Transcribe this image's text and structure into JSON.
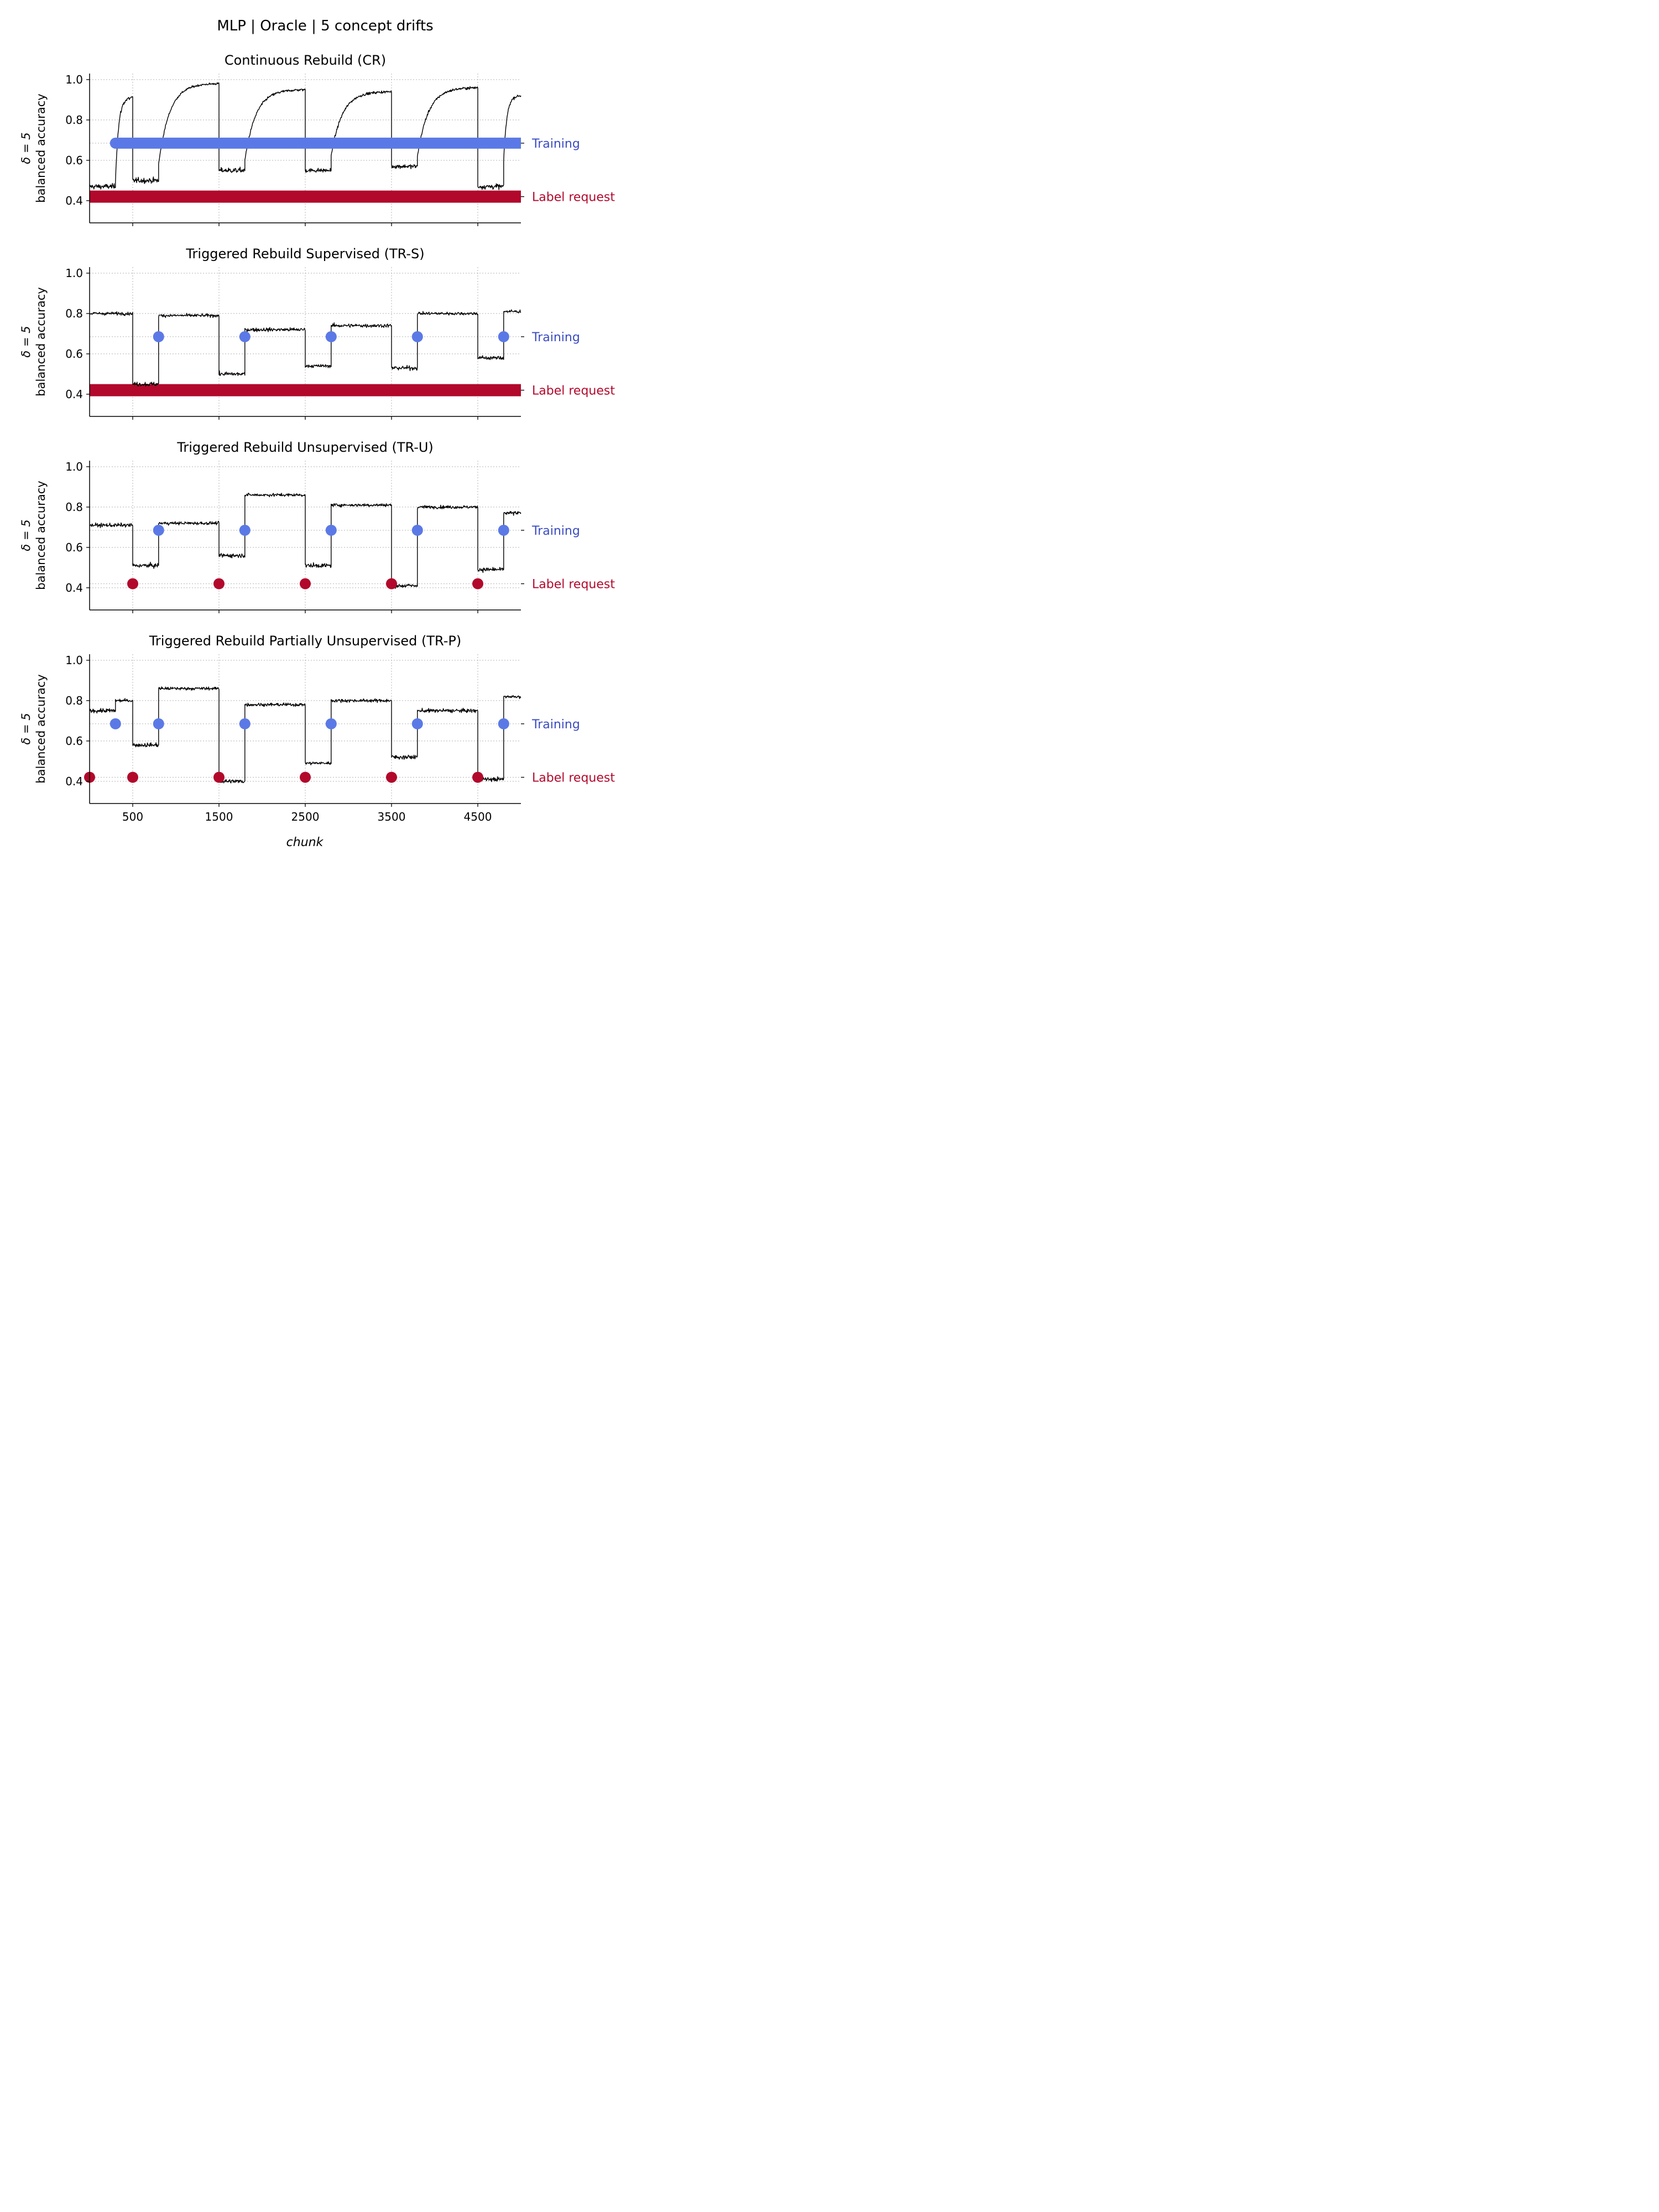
{
  "figure": {
    "suptitle": "MLP | Oracle | 5 concept drifts",
    "xlabel": "chunk",
    "ylabel_line1": "δ = 5",
    "ylabel_line2": "balanced accuracy"
  },
  "colors": {
    "training": "#5b79e6",
    "label_request": "#b2082b",
    "training_text": "#3a4cc0",
    "label_request_text": "#b2082b",
    "line": "#000000",
    "grid": "#b0b0b0"
  },
  "chart_data": [
    {
      "type": "line",
      "title": "Continuous Rebuild (CR)",
      "xlim": [
        0,
        5000
      ],
      "ylim": [
        0.29,
        1.03
      ],
      "x_ticks": [
        500,
        1500,
        2500,
        3500,
        4500
      ],
      "y_ticks": [
        0.4,
        0.6,
        0.8,
        1.0
      ],
      "grid": true,
      "accuracy_segments": [
        {
          "x0": 0,
          "x1": 300,
          "y0": 0.47,
          "y1": 0.47,
          "noise": 0.025
        },
        {
          "x0": 300,
          "x1": 500,
          "y0": 0.5,
          "y1": 0.91,
          "noise": 0.02
        },
        {
          "x0": 500,
          "x1": 800,
          "y0": 0.5,
          "y1": 0.5,
          "noise": 0.025
        },
        {
          "x0": 800,
          "x1": 1500,
          "y0": 0.58,
          "y1": 0.98,
          "noise": 0.01
        },
        {
          "x0": 1500,
          "x1": 1800,
          "y0": 0.55,
          "y1": 0.55,
          "noise": 0.025
        },
        {
          "x0": 1800,
          "x1": 2500,
          "y0": 0.6,
          "y1": 0.95,
          "noise": 0.012
        },
        {
          "x0": 2500,
          "x1": 2800,
          "y0": 0.55,
          "y1": 0.55,
          "noise": 0.02
        },
        {
          "x0": 2800,
          "x1": 3500,
          "y0": 0.62,
          "y1": 0.94,
          "noise": 0.012
        },
        {
          "x0": 3500,
          "x1": 3800,
          "y0": 0.57,
          "y1": 0.57,
          "noise": 0.02
        },
        {
          "x0": 3800,
          "x1": 4500,
          "y0": 0.62,
          "y1": 0.96,
          "noise": 0.012
        },
        {
          "x0": 4500,
          "x1": 4800,
          "y0": 0.47,
          "y1": 0.47,
          "noise": 0.025
        },
        {
          "x0": 4800,
          "x1": 5000,
          "y0": 0.6,
          "y1": 0.92,
          "noise": 0.012
        }
      ],
      "training": {
        "label": "Training",
        "y": 0.685,
        "band": [
          300,
          5000
        ],
        "points": []
      },
      "label_request": {
        "label": "Label request",
        "y": 0.42,
        "band": [
          0,
          5000
        ],
        "points": []
      }
    },
    {
      "type": "line",
      "title": "Triggered Rebuild Supervised (TR-S)",
      "xlim": [
        0,
        5000
      ],
      "ylim": [
        0.29,
        1.03
      ],
      "x_ticks": [
        500,
        1500,
        2500,
        3500,
        4500
      ],
      "y_ticks": [
        0.4,
        0.6,
        0.8,
        1.0
      ],
      "grid": true,
      "accuracy_segments": [
        {
          "x0": 0,
          "x1": 500,
          "y0": 0.8,
          "y1": 0.8,
          "noise": 0.015
        },
        {
          "x0": 500,
          "x1": 800,
          "y0": 0.45,
          "y1": 0.45,
          "noise": 0.02
        },
        {
          "x0": 800,
          "x1": 1500,
          "y0": 0.79,
          "y1": 0.79,
          "noise": 0.015
        },
        {
          "x0": 1500,
          "x1": 1800,
          "y0": 0.5,
          "y1": 0.5,
          "noise": 0.02
        },
        {
          "x0": 1800,
          "x1": 2500,
          "y0": 0.72,
          "y1": 0.72,
          "noise": 0.018
        },
        {
          "x0": 2500,
          "x1": 2800,
          "y0": 0.54,
          "y1": 0.54,
          "noise": 0.015
        },
        {
          "x0": 2800,
          "x1": 3500,
          "y0": 0.74,
          "y1": 0.74,
          "noise": 0.018
        },
        {
          "x0": 3500,
          "x1": 3800,
          "y0": 0.53,
          "y1": 0.53,
          "noise": 0.02
        },
        {
          "x0": 3800,
          "x1": 4500,
          "y0": 0.8,
          "y1": 0.8,
          "noise": 0.015
        },
        {
          "x0": 4500,
          "x1": 4800,
          "y0": 0.58,
          "y1": 0.58,
          "noise": 0.02
        },
        {
          "x0": 4800,
          "x1": 5000,
          "y0": 0.81,
          "y1": 0.81,
          "noise": 0.015
        }
      ],
      "training": {
        "label": "Training",
        "y": 0.685,
        "band": null,
        "points": [
          800,
          1800,
          2800,
          3800,
          4800
        ]
      },
      "label_request": {
        "label": "Label request",
        "y": 0.42,
        "band": [
          0,
          5000
        ],
        "points": []
      }
    },
    {
      "type": "line",
      "title": "Triggered Rebuild Unsupervised (TR-U)",
      "xlim": [
        0,
        5000
      ],
      "ylim": [
        0.29,
        1.03
      ],
      "x_ticks": [
        500,
        1500,
        2500,
        3500,
        4500
      ],
      "y_ticks": [
        0.4,
        0.6,
        0.8,
        1.0
      ],
      "grid": true,
      "accuracy_segments": [
        {
          "x0": 0,
          "x1": 500,
          "y0": 0.71,
          "y1": 0.71,
          "noise": 0.018
        },
        {
          "x0": 500,
          "x1": 800,
          "y0": 0.51,
          "y1": 0.51,
          "noise": 0.02
        },
        {
          "x0": 800,
          "x1": 1500,
          "y0": 0.72,
          "y1": 0.72,
          "noise": 0.015
        },
        {
          "x0": 1500,
          "x1": 1800,
          "y0": 0.56,
          "y1": 0.56,
          "noise": 0.02
        },
        {
          "x0": 1800,
          "x1": 2500,
          "y0": 0.86,
          "y1": 0.86,
          "noise": 0.015
        },
        {
          "x0": 2500,
          "x1": 2800,
          "y0": 0.51,
          "y1": 0.51,
          "noise": 0.02
        },
        {
          "x0": 2800,
          "x1": 3500,
          "y0": 0.81,
          "y1": 0.81,
          "noise": 0.015
        },
        {
          "x0": 3500,
          "x1": 3800,
          "y0": 0.41,
          "y1": 0.41,
          "noise": 0.02
        },
        {
          "x0": 3800,
          "x1": 4500,
          "y0": 0.8,
          "y1": 0.8,
          "noise": 0.015
        },
        {
          "x0": 4500,
          "x1": 4800,
          "y0": 0.49,
          "y1": 0.49,
          "noise": 0.02
        },
        {
          "x0": 4800,
          "x1": 5000,
          "y0": 0.77,
          "y1": 0.77,
          "noise": 0.018
        }
      ],
      "training": {
        "label": "Training",
        "y": 0.685,
        "band": null,
        "points": [
          800,
          1800,
          2800,
          3800,
          4800
        ]
      },
      "label_request": {
        "label": "Label request",
        "y": 0.42,
        "band": null,
        "points": [
          500,
          1500,
          2500,
          3500,
          4500
        ]
      }
    },
    {
      "type": "line",
      "title": "Triggered Rebuild Partially Unsupervised (TR-P)",
      "xlim": [
        0,
        5000
      ],
      "ylim": [
        0.29,
        1.03
      ],
      "x_ticks": [
        500,
        1500,
        2500,
        3500,
        4500
      ],
      "x_tick_labels": [
        "500",
        "1500",
        "2500",
        "3500",
        "4500"
      ],
      "y_ticks": [
        0.4,
        0.6,
        0.8,
        1.0
      ],
      "grid": true,
      "accuracy_segments": [
        {
          "x0": 0,
          "x1": 300,
          "y0": 0.75,
          "y1": 0.75,
          "noise": 0.02
        },
        {
          "x0": 300,
          "x1": 500,
          "y0": 0.8,
          "y1": 0.8,
          "noise": 0.015
        },
        {
          "x0": 500,
          "x1": 800,
          "y0": 0.58,
          "y1": 0.58,
          "noise": 0.02
        },
        {
          "x0": 800,
          "x1": 1500,
          "y0": 0.86,
          "y1": 0.86,
          "noise": 0.015
        },
        {
          "x0": 1500,
          "x1": 1800,
          "y0": 0.4,
          "y1": 0.4,
          "noise": 0.02
        },
        {
          "x0": 1800,
          "x1": 2500,
          "y0": 0.78,
          "y1": 0.78,
          "noise": 0.015
        },
        {
          "x0": 2500,
          "x1": 2800,
          "y0": 0.49,
          "y1": 0.49,
          "noise": 0.015
        },
        {
          "x0": 2800,
          "x1": 3500,
          "y0": 0.8,
          "y1": 0.8,
          "noise": 0.015
        },
        {
          "x0": 3500,
          "x1": 3800,
          "y0": 0.52,
          "y1": 0.52,
          "noise": 0.02
        },
        {
          "x0": 3800,
          "x1": 4500,
          "y0": 0.75,
          "y1": 0.75,
          "noise": 0.018
        },
        {
          "x0": 4500,
          "x1": 4800,
          "y0": 0.41,
          "y1": 0.41,
          "noise": 0.02
        },
        {
          "x0": 4800,
          "x1": 5000,
          "y0": 0.82,
          "y1": 0.82,
          "noise": 0.015
        }
      ],
      "training": {
        "label": "Training",
        "y": 0.685,
        "band": null,
        "points": [
          300,
          800,
          1800,
          2800,
          3800,
          4800
        ]
      },
      "label_request": {
        "label": "Label request",
        "y": 0.42,
        "band": null,
        "points": [
          0,
          500,
          1500,
          2500,
          3500,
          4500
        ]
      }
    }
  ]
}
